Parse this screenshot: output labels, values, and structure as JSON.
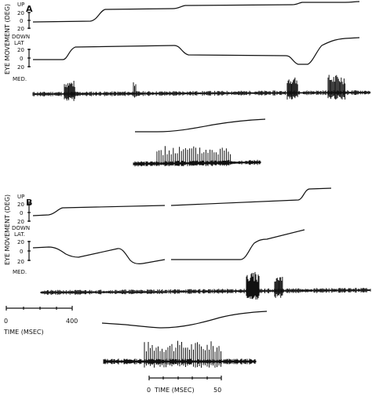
{
  "panel_a": {
    "label": "A",
    "ylabel": "EYE MOVEMENT (DEG)",
    "up": "UP",
    "down": "DOWN",
    "lat": "LAT",
    "med": "MED.",
    "vert_ticks": [
      "20",
      "0",
      "20"
    ],
    "horiz_ticks": [
      "20",
      "0",
      "20"
    ]
  },
  "panel_b": {
    "label": "B",
    "ylabel": "EYE MOVEMENT (DEG)",
    "up": "UP",
    "down": "DOWN",
    "lat": "LAT.",
    "med": "MED.",
    "vert_ticks": [
      "20",
      "0",
      "20"
    ],
    "horiz_ticks": [
      "20",
      "0",
      "20"
    ]
  },
  "scale_slow": {
    "tick_start": "0",
    "tick_end": "400",
    "label": "TIME (MSEC)"
  },
  "scale_fast": {
    "tick_start": "0",
    "tick_end": "50",
    "label": "TIME (MSEC)"
  }
}
